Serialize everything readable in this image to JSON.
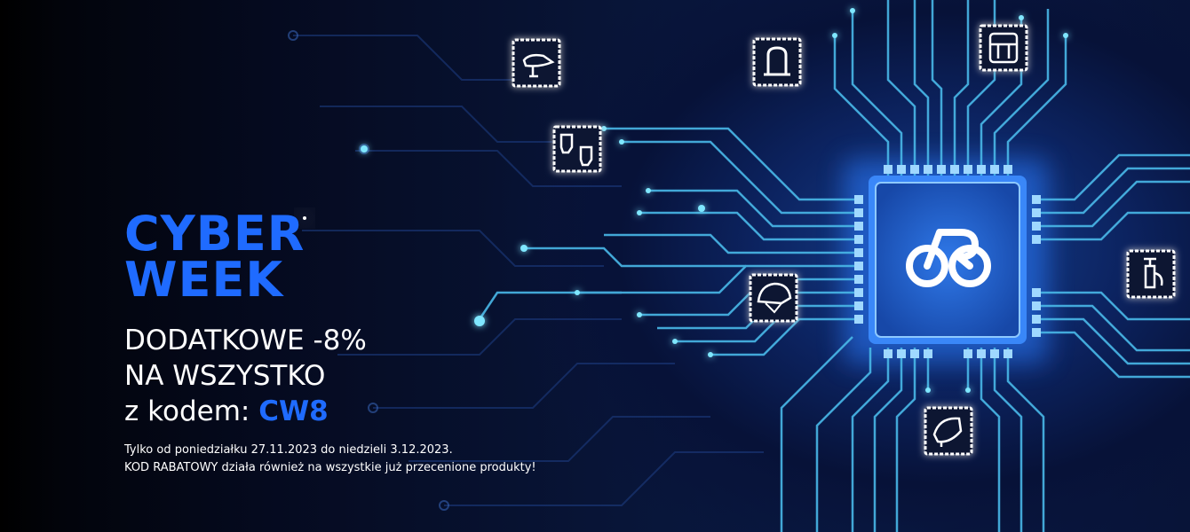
{
  "banner": {
    "headline_line1": "CYBER",
    "headline_line2": "WEEK",
    "offer_line1": "DODATKOWE -8%",
    "offer_line2": "NA WSZYSTKO",
    "offer_line3_prefix": "z kodem: ",
    "code": "CW8",
    "terms_line1": "Tylko od poniedziałku 27.11.2023 do niedzieli 3.12.2023.",
    "terms_line2": "KOD RABATOWY działa również na wszystkie już przecenione produkty!"
  },
  "colors": {
    "accent_blue": "#1f6bff",
    "text_white": "#ffffff",
    "background_dark": "#050814",
    "circuit_cyan": "#49b8e8"
  },
  "icons": {
    "chip": "bike-logo-icon",
    "nodes": [
      "saddle-icon",
      "gloves-icon",
      "bike-lock-icon",
      "bag-icon",
      "helmet-icon",
      "pump-icon",
      "bell-icon"
    ]
  }
}
